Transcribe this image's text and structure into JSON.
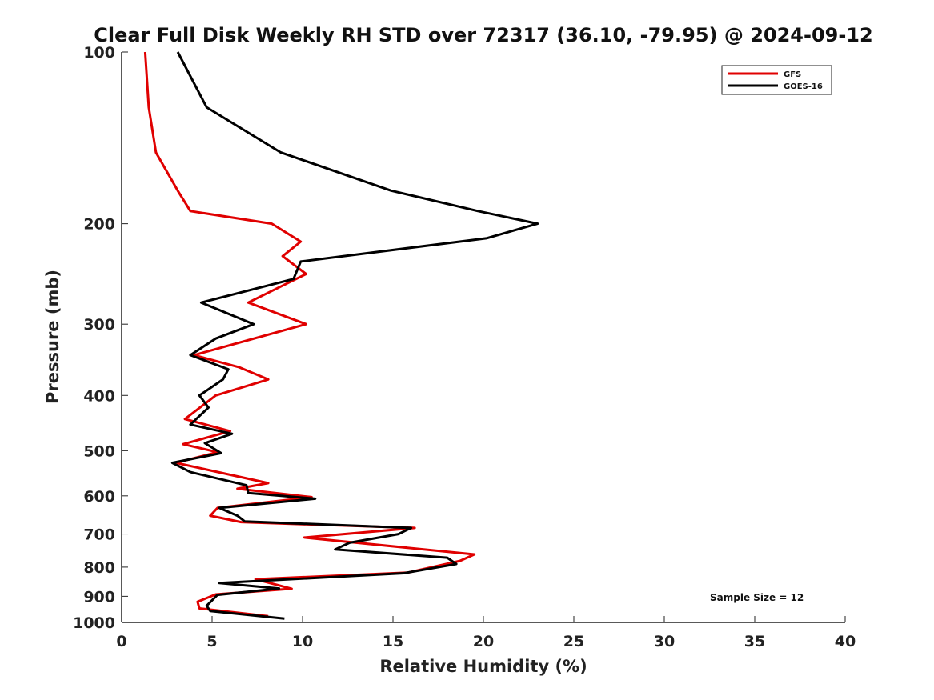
{
  "chart_data": {
    "type": "line",
    "title": "Clear Full Disk Weekly RH STD over 72317 (36.10, -79.95) @ 2024-09-12",
    "xlabel": "Relative Humidity (%)",
    "ylabel": "Pressure (mb)",
    "xlim": [
      0,
      40
    ],
    "ylim": [
      100,
      1000
    ],
    "yscale": "log",
    "y_reversed": true,
    "grid": false,
    "legend_position": "top-right",
    "x_ticks": [
      "0",
      "5",
      "10",
      "15",
      "20",
      "25",
      "30",
      "35",
      "40"
    ],
    "y_ticks": [
      "100",
      "200",
      "300",
      "400",
      "500",
      "600",
      "700",
      "800",
      "900",
      "1000"
    ],
    "annotation": "Sample Size = 12",
    "series": [
      {
        "name": "GFS",
        "color": "#e00000",
        "points": [
          [
            1.3,
            100
          ],
          [
            1.5,
            125
          ],
          [
            1.9,
            150
          ],
          [
            3.1,
            175
          ],
          [
            3.8,
            190
          ],
          [
            8.3,
            200
          ],
          [
            9.9,
            215
          ],
          [
            8.9,
            228
          ],
          [
            10.2,
            245
          ],
          [
            7.0,
            275
          ],
          [
            10.2,
            300
          ],
          [
            4.0,
            340
          ],
          [
            6.5,
            357
          ],
          [
            8.1,
            375
          ],
          [
            5.2,
            400
          ],
          [
            3.5,
            440
          ],
          [
            6.0,
            462
          ],
          [
            3.4,
            487
          ],
          [
            5.3,
            503
          ],
          [
            3.0,
            525
          ],
          [
            8.1,
            570
          ],
          [
            6.4,
            583
          ],
          [
            10.5,
            603
          ],
          [
            5.3,
            630
          ],
          [
            4.9,
            650
          ],
          [
            6.6,
            667
          ],
          [
            16.2,
            683
          ],
          [
            10.1,
            710
          ],
          [
            19.5,
            760
          ],
          [
            18.7,
            780
          ],
          [
            15.8,
            818
          ],
          [
            7.4,
            840
          ],
          [
            9.4,
            873
          ],
          [
            5.2,
            893
          ],
          [
            4.2,
            920
          ],
          [
            4.3,
            945
          ],
          [
            8.1,
            975
          ]
        ]
      },
      {
        "name": "GOES-16",
        "color": "#000000",
        "points": [
          [
            3.1,
            100
          ],
          [
            4.7,
            125
          ],
          [
            8.8,
            150
          ],
          [
            14.9,
            175
          ],
          [
            19.7,
            190
          ],
          [
            23.0,
            200
          ],
          [
            20.2,
            212
          ],
          [
            9.9,
            233
          ],
          [
            9.5,
            250
          ],
          [
            4.4,
            275
          ],
          [
            7.3,
            300
          ],
          [
            5.2,
            318
          ],
          [
            3.8,
            340
          ],
          [
            5.9,
            360
          ],
          [
            5.6,
            375
          ],
          [
            4.3,
            400
          ],
          [
            4.8,
            420
          ],
          [
            3.8,
            450
          ],
          [
            6.1,
            467
          ],
          [
            4.6,
            485
          ],
          [
            5.5,
            505
          ],
          [
            2.8,
            525
          ],
          [
            3.8,
            545
          ],
          [
            6.9,
            575
          ],
          [
            7.0,
            593
          ],
          [
            10.7,
            607
          ],
          [
            5.4,
            630
          ],
          [
            6.4,
            650
          ],
          [
            6.8,
            665
          ],
          [
            16.0,
            683
          ],
          [
            15.3,
            700
          ],
          [
            12.6,
            725
          ],
          [
            11.8,
            745
          ],
          [
            18.0,
            770
          ],
          [
            18.5,
            790
          ],
          [
            15.6,
            820
          ],
          [
            5.4,
            853
          ],
          [
            8.7,
            872
          ],
          [
            5.3,
            895
          ],
          [
            4.7,
            935
          ],
          [
            4.9,
            955
          ],
          [
            9.0,
            985
          ]
        ]
      }
    ]
  }
}
